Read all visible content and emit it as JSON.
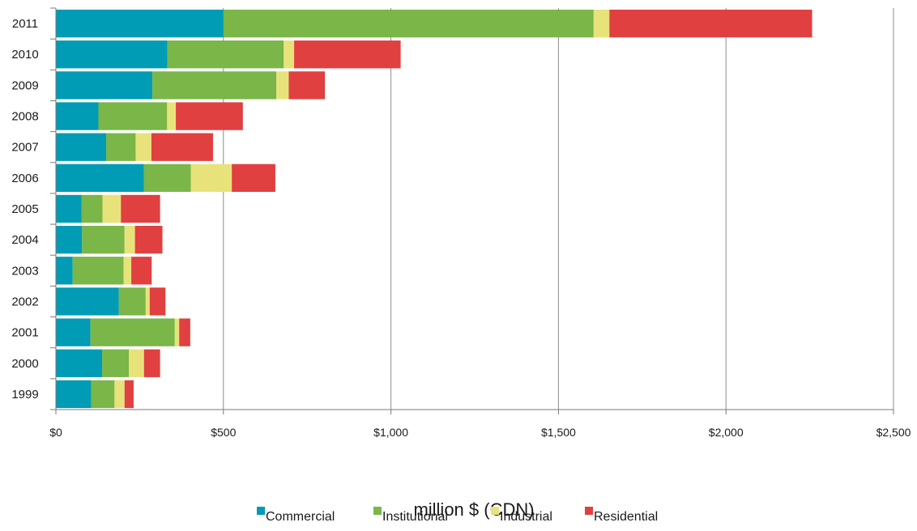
{
  "chart_data": {
    "type": "bar",
    "orientation": "horizontal",
    "stacked": true,
    "categories": [
      "2011",
      "2010",
      "2009",
      "2008",
      "2007",
      "2006",
      "2005",
      "2004",
      "2003",
      "2002",
      "2001",
      "2000",
      "1999"
    ],
    "series": [
      {
        "name": "Commercial",
        "color": "#009bb4",
        "values": [
          500,
          333,
          288,
          127,
          150,
          263,
          77,
          78,
          50,
          188,
          103,
          138,
          105
        ]
      },
      {
        "name": "Institutional",
        "color": "#7ab648",
        "values": [
          1105,
          347,
          370,
          205,
          88,
          140,
          62,
          127,
          152,
          80,
          252,
          80,
          70
        ]
      },
      {
        "name": "Industrial",
        "color": "#e8e27a",
        "values": [
          47,
          31,
          37,
          26,
          47,
          122,
          55,
          31,
          23,
          12,
          13,
          45,
          30
        ]
      },
      {
        "name": "Residential",
        "color": "#e04040",
        "values": [
          605,
          318,
          108,
          200,
          184,
          130,
          117,
          82,
          61,
          47,
          33,
          48,
          27
        ]
      }
    ],
    "xlabel": "million $ (CDN)",
    "xlim": [
      0,
      2500
    ],
    "xticks": [
      0,
      500,
      1000,
      1500,
      2000,
      2500
    ],
    "xtick_labels": [
      "$0",
      "$500",
      "$1,000",
      "$1,500",
      "$2,000",
      "$2,500"
    ],
    "grid": "vertical",
    "legend_position": "bottom"
  }
}
